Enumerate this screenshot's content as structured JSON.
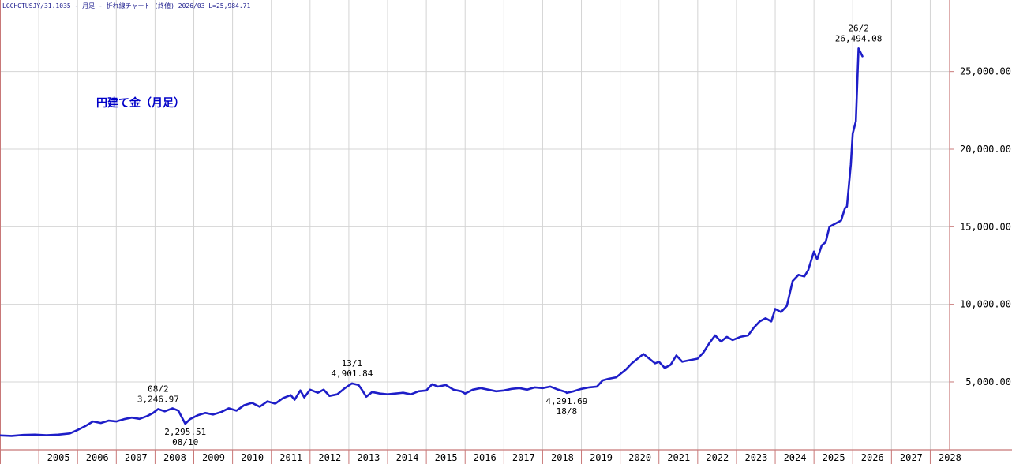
{
  "header": {
    "text": "LGCHGTUSJY/31.1035 - 月足 - 折れ線チャート (終値) 2026/03 L=25,984.71"
  },
  "colors": {
    "line": "#1e1ec8",
    "axis": "#c87878",
    "grid": "#d4d4d4"
  },
  "chart_data": {
    "type": "line",
    "title": "円建て金（月足）",
    "xlabel": "",
    "ylabel": "",
    "grid": true,
    "y_axis_position": "right",
    "ylim": [
      0,
      28500
    ],
    "xlim": [
      2004.0,
      2028.5
    ],
    "yticks": [
      5000,
      10000,
      15000,
      20000,
      25000
    ],
    "ytick_labels": [
      "5,000.00",
      "10,000.00",
      "15,000.00",
      "20,000.00",
      "25,000.00"
    ],
    "xticks": [
      "2005",
      "2006",
      "2007",
      "2008",
      "2009",
      "2010",
      "2011",
      "2012",
      "2013",
      "2014",
      "2015",
      "2016",
      "2017",
      "2018",
      "2019",
      "2020",
      "2021",
      "2022",
      "2023",
      "2024",
      "2025",
      "2026",
      "2027",
      "2028"
    ],
    "series": [
      {
        "values": [
          [
            2004.0,
            1550
          ],
          [
            2004.3,
            1520
          ],
          [
            2004.6,
            1580
          ],
          [
            2004.9,
            1600
          ],
          [
            2005.2,
            1560
          ],
          [
            2005.5,
            1600
          ],
          [
            2005.8,
            1680
          ],
          [
            2006.0,
            1900
          ],
          [
            2006.2,
            2150
          ],
          [
            2006.4,
            2450
          ],
          [
            2006.6,
            2350
          ],
          [
            2006.8,
            2500
          ],
          [
            2007.0,
            2450
          ],
          [
            2007.2,
            2600
          ],
          [
            2007.4,
            2700
          ],
          [
            2007.6,
            2620
          ],
          [
            2007.8,
            2800
          ],
          [
            2007.95,
            3000
          ],
          [
            2008.08,
            3247
          ],
          [
            2008.25,
            3100
          ],
          [
            2008.45,
            3300
          ],
          [
            2008.6,
            3150
          ],
          [
            2008.78,
            2296
          ],
          [
            2008.9,
            2600
          ],
          [
            2009.1,
            2850
          ],
          [
            2009.3,
            3000
          ],
          [
            2009.5,
            2900
          ],
          [
            2009.7,
            3050
          ],
          [
            2009.9,
            3300
          ],
          [
            2010.1,
            3150
          ],
          [
            2010.3,
            3500
          ],
          [
            2010.5,
            3650
          ],
          [
            2010.7,
            3400
          ],
          [
            2010.9,
            3750
          ],
          [
            2011.1,
            3600
          ],
          [
            2011.3,
            3950
          ],
          [
            2011.5,
            4150
          ],
          [
            2011.6,
            3850
          ],
          [
            2011.75,
            4450
          ],
          [
            2011.85,
            4000
          ],
          [
            2012.0,
            4500
          ],
          [
            2012.2,
            4300
          ],
          [
            2012.35,
            4500
          ],
          [
            2012.5,
            4100
          ],
          [
            2012.7,
            4200
          ],
          [
            2012.9,
            4600
          ],
          [
            2013.08,
            4902
          ],
          [
            2013.25,
            4800
          ],
          [
            2013.35,
            4450
          ],
          [
            2013.45,
            4050
          ],
          [
            2013.6,
            4350
          ],
          [
            2013.8,
            4250
          ],
          [
            2014.0,
            4200
          ],
          [
            2014.2,
            4250
          ],
          [
            2014.4,
            4300
          ],
          [
            2014.6,
            4200
          ],
          [
            2014.8,
            4400
          ],
          [
            2015.0,
            4450
          ],
          [
            2015.15,
            4850
          ],
          [
            2015.3,
            4700
          ],
          [
            2015.5,
            4800
          ],
          [
            2015.7,
            4500
          ],
          [
            2015.9,
            4400
          ],
          [
            2016.0,
            4250
          ],
          [
            2016.2,
            4500
          ],
          [
            2016.4,
            4600
          ],
          [
            2016.6,
            4500
          ],
          [
            2016.8,
            4400
          ],
          [
            2017.0,
            4450
          ],
          [
            2017.2,
            4550
          ],
          [
            2017.4,
            4600
          ],
          [
            2017.6,
            4500
          ],
          [
            2017.8,
            4650
          ],
          [
            2018.0,
            4600
          ],
          [
            2018.2,
            4700
          ],
          [
            2018.4,
            4500
          ],
          [
            2018.6,
            4350
          ],
          [
            2018.62,
            4292
          ],
          [
            2018.8,
            4400
          ],
          [
            2019.0,
            4550
          ],
          [
            2019.2,
            4650
          ],
          [
            2019.4,
            4700
          ],
          [
            2019.55,
            5100
          ],
          [
            2019.7,
            5200
          ],
          [
            2019.9,
            5300
          ],
          [
            2020.0,
            5500
          ],
          [
            2020.15,
            5800
          ],
          [
            2020.3,
            6200
          ],
          [
            2020.45,
            6500
          ],
          [
            2020.6,
            6800
          ],
          [
            2020.75,
            6500
          ],
          [
            2020.9,
            6200
          ],
          [
            2021.0,
            6300
          ],
          [
            2021.15,
            5900
          ],
          [
            2021.3,
            6100
          ],
          [
            2021.45,
            6700
          ],
          [
            2021.6,
            6300
          ],
          [
            2021.8,
            6400
          ],
          [
            2022.0,
            6500
          ],
          [
            2022.15,
            6900
          ],
          [
            2022.3,
            7500
          ],
          [
            2022.45,
            8000
          ],
          [
            2022.6,
            7600
          ],
          [
            2022.75,
            7900
          ],
          [
            2022.9,
            7700
          ],
          [
            2023.1,
            7900
          ],
          [
            2023.3,
            8000
          ],
          [
            2023.45,
            8500
          ],
          [
            2023.6,
            8900
          ],
          [
            2023.75,
            9100
          ],
          [
            2023.9,
            8900
          ],
          [
            2024.0,
            9700
          ],
          [
            2024.15,
            9500
          ],
          [
            2024.3,
            9900
          ],
          [
            2024.45,
            11500
          ],
          [
            2024.6,
            11900
          ],
          [
            2024.75,
            11800
          ],
          [
            2024.85,
            12200
          ],
          [
            2025.0,
            13400
          ],
          [
            2025.08,
            12900
          ],
          [
            2025.2,
            13800
          ],
          [
            2025.3,
            14000
          ],
          [
            2025.4,
            15000
          ],
          [
            2025.55,
            15200
          ],
          [
            2025.7,
            15400
          ],
          [
            2025.8,
            16200
          ],
          [
            2025.85,
            16300
          ],
          [
            2025.95,
            19000
          ],
          [
            2026.0,
            21000
          ],
          [
            2026.08,
            21800
          ],
          [
            2026.15,
            26494
          ],
          [
            2026.25,
            25985
          ]
        ]
      }
    ],
    "annotations": [
      {
        "x": 2008.08,
        "y": 3246.97,
        "date": "08/2",
        "value": "3,246.97",
        "position": "above"
      },
      {
        "x": 2008.78,
        "y": 2295.51,
        "date": "08/10",
        "value": "2,295.51",
        "position": "below"
      },
      {
        "x": 2013.08,
        "y": 4901.84,
        "date": "13/1",
        "value": "4,901.84",
        "position": "above"
      },
      {
        "x": 2018.62,
        "y": 4291.69,
        "date": "18/8",
        "value": "4,291.69",
        "position": "below"
      },
      {
        "x": 2026.15,
        "y": 26494.08,
        "date": "26/2",
        "value": "26,494.08",
        "position": "above"
      }
    ]
  }
}
